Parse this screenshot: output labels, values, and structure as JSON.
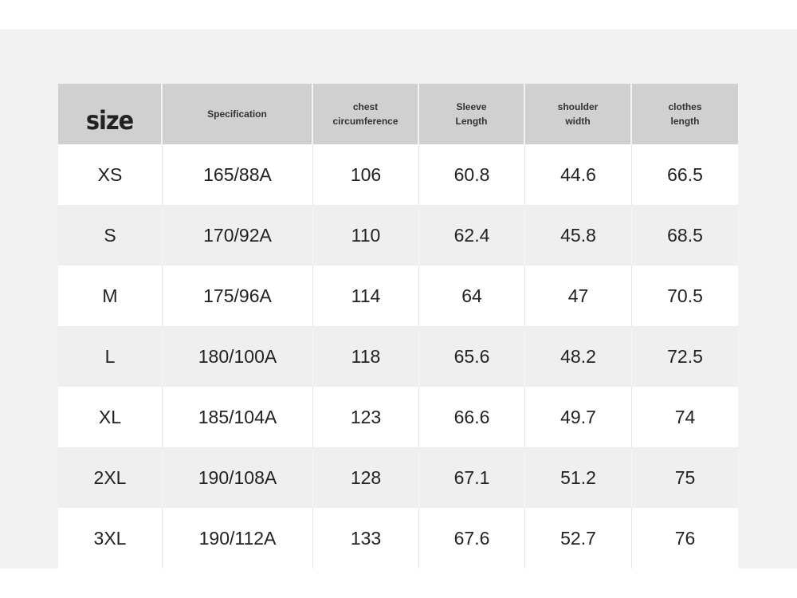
{
  "table": {
    "header": [
      [
        "size"
      ],
      [
        "Specification"
      ],
      [
        "chest",
        "circumference"
      ],
      [
        "Sleeve",
        "Length"
      ],
      [
        "shoulder",
        "width"
      ],
      [
        "clothes",
        "length"
      ]
    ],
    "rows": [
      [
        "XS",
        "165/88A",
        106,
        60.8,
        44.6,
        66.5
      ],
      [
        "S",
        "170/92A",
        110,
        62.4,
        45.8,
        68.5
      ],
      [
        "M",
        "175/96A",
        114,
        64,
        47,
        70.5
      ],
      [
        "L",
        "180/100A",
        118,
        65.6,
        48.2,
        72.5
      ],
      [
        "XL",
        "185/104A",
        123,
        66.6,
        49.7,
        74
      ],
      [
        "2XL",
        "190/108A",
        128,
        67.1,
        51.2,
        75
      ],
      [
        "3XL",
        "190/112A",
        133,
        67.6,
        52.7,
        76
      ]
    ]
  }
}
